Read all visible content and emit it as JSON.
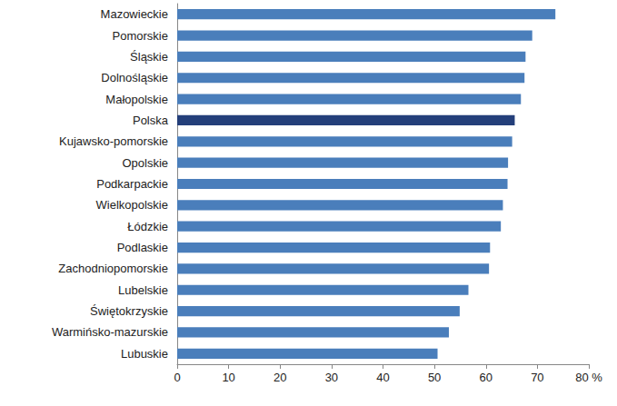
{
  "chart_data": {
    "type": "bar",
    "orientation": "horizontal",
    "categories": [
      "Mazowieckie",
      "Pomorskie",
      "Śląskie",
      "Dolnośląskie",
      "Małopolskie",
      "Polska",
      "Kujawsko-pomorskie",
      "Opolskie",
      "Podkarpackie",
      "Wielkopolskie",
      "Łódzkie",
      "Podlaskie",
      "Zachodniopomorskie",
      "Lubelskie",
      "Świętokrzyskie",
      "Warmińsko-mazurskie",
      "Lubuskie"
    ],
    "values": [
      73.5,
      69.0,
      67.7,
      67.5,
      66.8,
      65.6,
      65.1,
      64.3,
      64.2,
      63.3,
      62.9,
      60.8,
      60.6,
      56.6,
      54.9,
      52.8,
      50.6
    ],
    "colors": [
      "#4a7ebb",
      "#4a7ebb",
      "#4a7ebb",
      "#4a7ebb",
      "#4a7ebb",
      "#243f7a",
      "#4a7ebb",
      "#4a7ebb",
      "#4a7ebb",
      "#4a7ebb",
      "#4a7ebb",
      "#4a7ebb",
      "#4a7ebb",
      "#4a7ebb",
      "#4a7ebb",
      "#4a7ebb",
      "#4a7ebb"
    ],
    "xlim": [
      0,
      80
    ],
    "xticks": [
      0,
      10,
      20,
      30,
      40,
      50,
      60,
      70,
      {
        "value": 80,
        "label": "80 %"
      }
    ],
    "grid": false
  }
}
